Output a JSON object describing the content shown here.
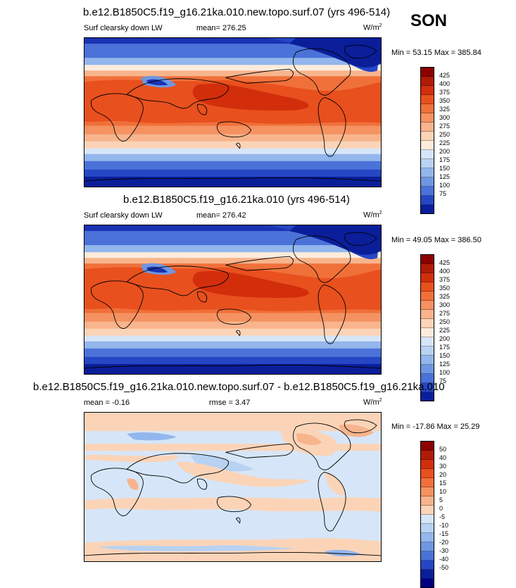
{
  "season": "SON",
  "panels": [
    {
      "title": "b.e12.B1850C5.f19_g16.21ka.010.new.topo.surf.07 (yrs 496-514)",
      "left_label": "Surf clearsky down LW",
      "center_label": "mean= 276.25",
      "units_base": "W/m",
      "units_exp": "2",
      "minmax": "Min =  53.15 Max = 385.84"
    },
    {
      "title": "b.e12.B1850C5.f19_g16.21ka.010 (yrs 496-514)",
      "left_label": "Surf clearsky down LW",
      "center_label": "mean= 276.42",
      "units_base": "W/m",
      "units_exp": "2",
      "minmax": "Min =  49.05 Max = 386.50"
    },
    {
      "title": "b.e12.B1850C5.f19_g16.21ka.010.new.topo.surf.07 - b.e12.B1850C5.f19_g16.21ka.010",
      "left_label": "mean =  -0.16",
      "center_label": "rmse =   3.47",
      "units_base": "W/m",
      "units_exp": "2",
      "minmax": "Min = -17.86 Max =  25.29"
    }
  ],
  "colorbars": {
    "absolute": {
      "labels": [
        "425",
        "400",
        "375",
        "350",
        "325",
        "300",
        "275",
        "250",
        "225",
        "200",
        "175",
        "150",
        "125",
        "100",
        "75"
      ],
      "colors": [
        "#8b0000",
        "#b01a06",
        "#d22e0c",
        "#e8501e",
        "#f0703a",
        "#f49262",
        "#f8b48c",
        "#fbd4b8",
        "#fcecdc",
        "#d6e6f8",
        "#b8d2f2",
        "#93b6ec",
        "#6e96e2",
        "#4a72d8",
        "#2646c4",
        "#0a1e9a"
      ]
    },
    "difference": {
      "labels": [
        "50",
        "40",
        "30",
        "20",
        "15",
        "10",
        "5",
        "0",
        "-5",
        "-10",
        "-15",
        "-20",
        "-30",
        "-40",
        "-50"
      ],
      "colors": [
        "#8b0000",
        "#b01a06",
        "#d22e0c",
        "#e8501e",
        "#f0703a",
        "#f49262",
        "#f8b48c",
        "#fbd4b8",
        "#d6e6f8",
        "#b8d2f2",
        "#93b6ec",
        "#6e96e2",
        "#4a72d8",
        "#2646c4",
        "#0a1e9a",
        "#000080"
      ]
    }
  },
  "chart_data": [
    {
      "type": "heatmap",
      "title": "b.e12.B1850C5.f19_g16.21ka.010.new.topo.surf.07 (yrs 496-514)",
      "variable": "Surf clearsky down LW",
      "units": "W/m2",
      "mean": 276.25,
      "min": 53.15,
      "max": 385.84,
      "contour_levels": [
        75,
        100,
        125,
        150,
        175,
        200,
        225,
        250,
        275,
        300,
        325,
        350,
        375,
        400,
        425
      ]
    },
    {
      "type": "heatmap",
      "title": "b.e12.B1850C5.f19_g16.21ka.010 (yrs 496-514)",
      "variable": "Surf clearsky down LW",
      "units": "W/m2",
      "mean": 276.42,
      "min": 49.05,
      "max": 386.5,
      "contour_levels": [
        75,
        100,
        125,
        150,
        175,
        200,
        225,
        250,
        275,
        300,
        325,
        350,
        375,
        400,
        425
      ]
    },
    {
      "type": "heatmap",
      "title": "b.e12.B1850C5.f19_g16.21ka.010.new.topo.surf.07 - b.e12.B1850C5.f19_g16.21ka.010",
      "units": "W/m2",
      "mean": -0.16,
      "rmse": 3.47,
      "min": -17.86,
      "max": 25.29,
      "contour_levels": [
        -50,
        -40,
        -30,
        -20,
        -15,
        -10,
        -5,
        0,
        5,
        10,
        15,
        20,
        30,
        40,
        50
      ]
    }
  ]
}
